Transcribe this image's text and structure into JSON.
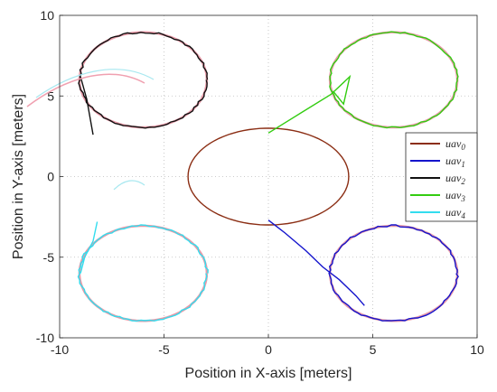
{
  "chart_data": {
    "type": "line",
    "xlabel": "Position in X-axis [meters]",
    "ylabel": "Position in Y-axis [meters]",
    "xlim": [
      -10,
      10
    ],
    "ylim": [
      -10,
      10
    ],
    "xticks": [
      -10,
      -5,
      0,
      5,
      10
    ],
    "yticks": [
      -10,
      -5,
      0,
      5,
      10
    ],
    "grid": "dotted",
    "legend_position": "right",
    "colors": {
      "uav0": "#8B2E14",
      "uav1": "#1414CC",
      "uav2": "#111111",
      "uav3": "#33CC11",
      "uav4": "#33DDEE",
      "reference": "#E89AA8"
    },
    "series": [
      {
        "name": "uav0",
        "legend_base": "uav",
        "legend_sub": "0",
        "shape": "circle",
        "center": [
          0,
          0
        ],
        "radius": [
          3.85,
          3.0
        ],
        "x": [
          0,
          3.85,
          0,
          -3.85,
          0
        ],
        "y": [
          3.0,
          0,
          -3.0,
          0,
          3.0
        ]
      },
      {
        "name": "uav1",
        "legend_base": "uav",
        "legend_sub": "1",
        "shape": "circle",
        "center": [
          6,
          -6
        ],
        "radius": [
          3.05,
          2.95
        ],
        "approach_x": [
          0,
          0.8,
          1.8,
          2.6,
          3.4,
          4.2,
          4.6
        ],
        "approach_y": [
          -2.7,
          -3.5,
          -4.6,
          -5.6,
          -6.4,
          -7.4,
          -8.0
        ]
      },
      {
        "name": "uav2",
        "legend_base": "uav",
        "legend_sub": "2",
        "shape": "circle",
        "center": [
          -6,
          6
        ],
        "radius": [
          3.05,
          2.95
        ],
        "approach_x": [
          -8.4,
          -8.7,
          -9.0
        ],
        "approach_y": [
          2.6,
          4.8,
          6.2
        ]
      },
      {
        "name": "uav3",
        "legend_base": "uav",
        "legend_sub": "3",
        "shape": "circle",
        "center": [
          6,
          6
        ],
        "radius": [
          3.05,
          2.95
        ],
        "approach_x": [
          0,
          1.5,
          3.0,
          3.9,
          3.6,
          3.1
        ],
        "approach_y": [
          2.7,
          3.9,
          5.1,
          6.2,
          4.5,
          5.3
        ]
      },
      {
        "name": "uav4",
        "legend_base": "uav",
        "legend_sub": "4",
        "shape": "circle",
        "center": [
          -6,
          -6
        ],
        "radius": [
          3.05,
          2.95
        ],
        "approach_x": [
          -8.2,
          -8.4,
          -8.8,
          -9.0
        ],
        "approach_y": [
          -2.8,
          -4.0,
          -5.0,
          -6.0
        ]
      }
    ]
  }
}
